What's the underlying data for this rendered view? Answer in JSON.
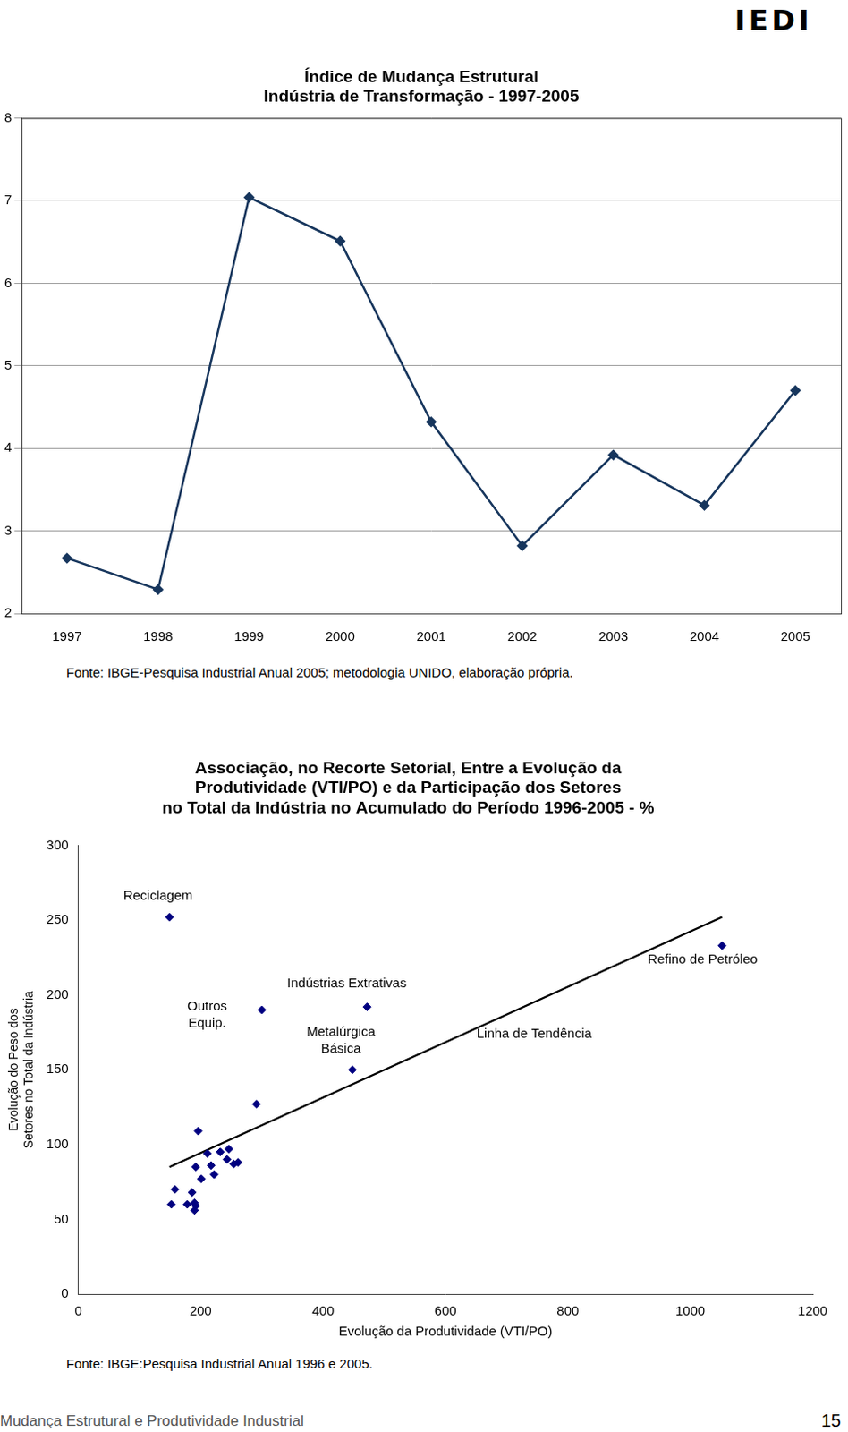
{
  "header": {
    "logo": "IEDI"
  },
  "chart_data": [
    {
      "type": "line",
      "title": [
        "Índice de Mudança Estrutural",
        "Indústria de Transformação - 1997-2005"
      ],
      "categories": [
        "1997",
        "1998",
        "1999",
        "2000",
        "2001",
        "2002",
        "2003",
        "2004",
        "2005"
      ],
      "values": [
        2.67,
        2.29,
        7.04,
        6.51,
        4.32,
        2.82,
        3.92,
        3.31,
        4.7
      ],
      "color": "#17365d",
      "marker": "diamond",
      "ylim": [
        2,
        8
      ],
      "yticks": [
        2,
        3,
        4,
        5,
        6,
        7,
        8
      ],
      "grid": true,
      "source": "Fonte: IBGE-Pesquisa Industrial Anual 2005; metodologia UNIDO, elaboração própria."
    },
    {
      "type": "scatter",
      "title": [
        "Associação, no Recorte Setorial, Entre a Evolução da",
        "Produtividade (VTI/PO) e da Participação dos Setores",
        "no Total da Indústria no Acumulado do Período 1996-2005 - %"
      ],
      "x_label": "Evolução da Produtividade (VTI/PO)",
      "y_label": [
        "Evolução do Peso dos",
        "Setores no Total da Indústria"
      ],
      "series": [
        {
          "type": "scatter",
          "color": "#000080",
          "marker": "diamond",
          "x": [
            149,
            1052,
            472,
            300,
            448,
            291,
            196,
            211,
            232,
            246,
            243,
            192,
            217,
            254,
            261,
            222,
            201,
            158,
            186,
            152,
            178,
            190,
            192,
            190
          ],
          "values": [
            252,
            233,
            192,
            190,
            150,
            127,
            109,
            94,
            95,
            97,
            90,
            85,
            86,
            87,
            88,
            80,
            77,
            70,
            68,
            60,
            60,
            61,
            59,
            56
          ],
          "point_labels": [
            [
              "Reciclagem"
            ],
            [
              "Refino de Petróleo"
            ],
            [
              "Indústrias Extrativas"
            ],
            [
              "Outros",
              "Equip."
            ],
            [
              "Metalúrgica",
              "Básica"
            ],
            null,
            null,
            null,
            null,
            null,
            null,
            null,
            null,
            null,
            null,
            null,
            null,
            null,
            null,
            null,
            null,
            null,
            null,
            null
          ]
        },
        {
          "type": "line",
          "name": "Linha de Tendência",
          "color": "#000000",
          "line_style": "solid",
          "x": [
            149,
            1052
          ],
          "values": [
            85,
            252
          ]
        }
      ],
      "xlim": [
        0,
        1200
      ],
      "xticks": [
        0,
        200,
        400,
        600,
        800,
        1000,
        1200
      ],
      "ylim": [
        0,
        300
      ],
      "yticks": [
        0,
        50,
        100,
        150,
        200,
        250,
        300
      ],
      "grid": false,
      "source": "Fonte: IBGE:Pesquisa Industrial Anual 1996 e 2005."
    }
  ],
  "footer": {
    "text": "Mudança Estrutural e Produtividade Industrial",
    "page_number": 15
  }
}
